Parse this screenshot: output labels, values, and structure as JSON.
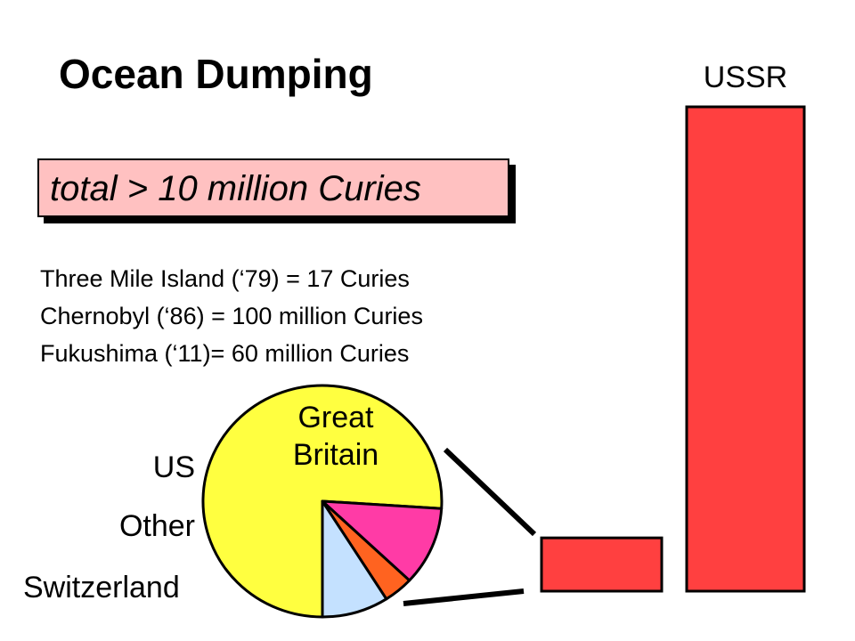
{
  "title": "Ocean Dumping",
  "callout": "total > 10 million Curies",
  "facts": [
    "Three Mile Island (‘79) = 17 Curies",
    "Chernobyl (‘86) = 100 million Curies",
    "Fukushima (‘11)= 60 million Curies"
  ],
  "colors": {
    "bar": "#ff4040",
    "callout_bg": "#ffc1c1",
    "great_britain": "#ffff40",
    "us": "#c4e1ff",
    "other": "#ff6320",
    "switzerland": "#ff3ba6"
  },
  "chart_data": [
    {
      "type": "bar",
      "categories": [
        "",
        "USSR"
      ],
      "values": [
        11,
        100
      ],
      "ylim": [
        0,
        100
      ],
      "grid": false
    },
    {
      "type": "pie",
      "labels": [
        "Great Britain",
        "Switzerland",
        "Other",
        "US"
      ],
      "values": [
        76,
        11,
        4,
        9
      ]
    }
  ]
}
